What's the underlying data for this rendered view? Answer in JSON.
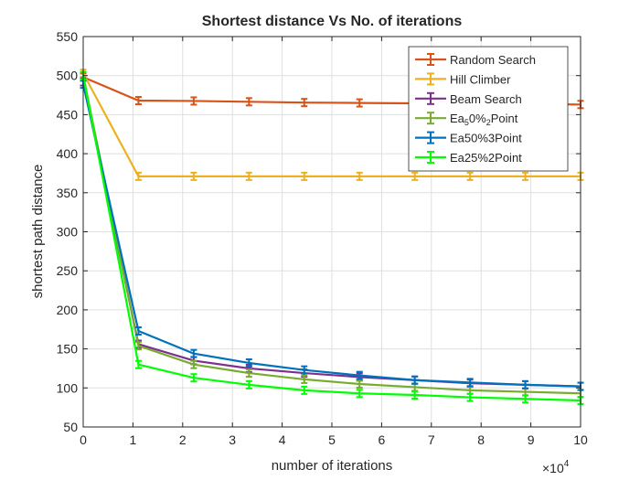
{
  "chart_data": {
    "type": "line",
    "title": "Shortest distance Vs No. of iterations",
    "xlabel": "number of iterations",
    "ylabel": "shortest path distance",
    "x_exponent_base": "×10",
    "x_exponent_power": "4",
    "xlim": [
      0,
      100000
    ],
    "ylim": [
      50,
      550
    ],
    "xtick_values": [
      0,
      10000,
      20000,
      30000,
      40000,
      50000,
      60000,
      70000,
      80000,
      90000,
      100000
    ],
    "xtick_labels": [
      "0",
      "1",
      "2",
      "3",
      "4",
      "5",
      "6",
      "7",
      "8",
      "9",
      "10"
    ],
    "ytick_values": [
      50,
      100,
      150,
      200,
      250,
      300,
      350,
      400,
      450,
      500,
      550
    ],
    "ytick_labels": [
      "50",
      "100",
      "150",
      "200",
      "250",
      "300",
      "350",
      "400",
      "450",
      "500",
      "550"
    ],
    "grid": true,
    "legend_position": "top-right",
    "x": [
      1,
      11112,
      22223,
      33334,
      44445,
      55556,
      66667,
      77778,
      88889,
      100000
    ],
    "series": [
      {
        "name": "Random Search",
        "color": "#D95319",
        "values": [
          498,
          468,
          467.5,
          466.5,
          465.5,
          465,
          464.5,
          464,
          463.5,
          463
        ]
      },
      {
        "name": "Hill Climber",
        "color": "#EDB120",
        "values": [
          503,
          371,
          371,
          371,
          371,
          371,
          371,
          371,
          371,
          371
        ]
      },
      {
        "name": "Beam Search",
        "color": "#7E2F8E",
        "values": [
          492,
          156,
          135,
          125,
          119,
          114,
          110,
          106,
          104,
          102
        ]
      },
      {
        "name": "Ea_{5}0%_{2}Point",
        "color": "#77AC30",
        "values": [
          500,
          154,
          130,
          119,
          111,
          105,
          101,
          97,
          95,
          93
        ]
      },
      {
        "name": "Ea50%3Point",
        "color": "#0072BD",
        "values": [
          489,
          173,
          144,
          132,
          123,
          116,
          110,
          107,
          104,
          102
        ]
      },
      {
        "name": "Ea25%2Point",
        "color": "#00FF00",
        "values": [
          500,
          130,
          113,
          104,
          97,
          93,
          91,
          88,
          86,
          84
        ]
      }
    ]
  }
}
